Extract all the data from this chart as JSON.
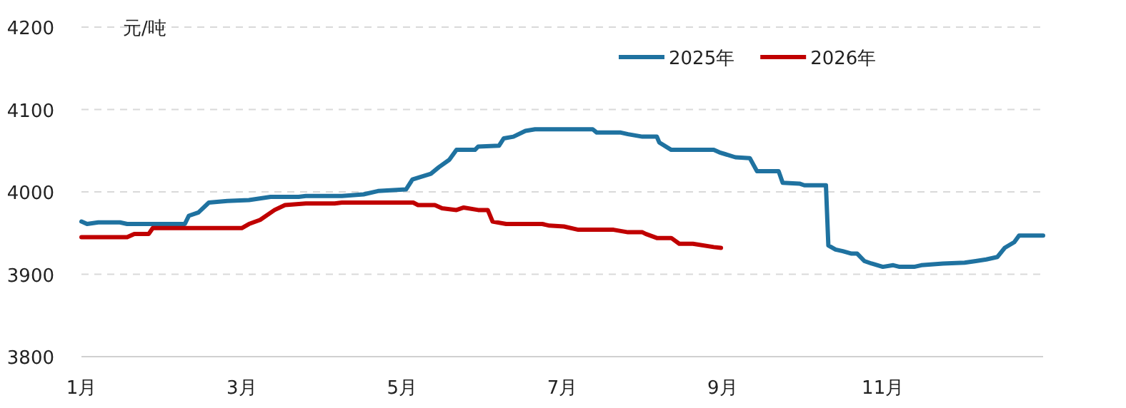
{
  "chart_data": {
    "type": "line",
    "ylabel": "元/吨",
    "legend": "top",
    "grid": "y",
    "line_style": "solid",
    "marker": "none",
    "xlim": [
      1,
      13
    ],
    "ylim": [
      3800,
      4200
    ],
    "yticks": [
      3800,
      3900,
      4000,
      4100,
      4200
    ],
    "xticks": [
      {
        "value": 1,
        "label": "1月"
      },
      {
        "value": 3,
        "label": "3月"
      },
      {
        "value": 5,
        "label": "5月"
      },
      {
        "value": 7,
        "label": "7月"
      },
      {
        "value": 9,
        "label": "9月"
      },
      {
        "value": 11,
        "label": "11月"
      }
    ],
    "series": [
      {
        "name": "2025年",
        "color": "#1f72a0",
        "x": [
          1.0,
          1.07,
          1.21,
          1.48,
          1.57,
          2.29,
          2.34,
          2.46,
          2.59,
          2.82,
          3.09,
          3.36,
          3.71,
          3.8,
          4.25,
          4.52,
          4.7,
          5.05,
          5.13,
          5.23,
          5.36,
          5.46,
          5.59,
          5.68,
          5.91,
          5.95,
          6.21,
          6.27,
          6.39,
          6.54,
          6.66,
          7.38,
          7.43,
          7.73,
          7.82,
          8.0,
          8.18,
          8.21,
          8.36,
          8.89,
          8.96,
          9.16,
          9.34,
          9.43,
          9.7,
          9.75,
          9.96,
          10.02,
          10.29,
          10.32,
          10.41,
          10.5,
          10.61,
          10.68,
          10.77,
          10.86,
          11.0,
          11.13,
          11.21,
          11.39,
          11.48,
          11.75,
          12.02,
          12.16,
          12.29,
          12.43,
          12.52,
          12.64,
          12.7,
          13.0
        ],
        "values": [
          3964,
          3961,
          3963,
          3963,
          3961,
          3961,
          3971,
          3975,
          3987,
          3989,
          3990,
          3994,
          3994,
          3995,
          3995,
          3997,
          4001,
          4003,
          4015,
          4018,
          4022,
          4030,
          4039,
          4051,
          4051,
          4055,
          4056,
          4065,
          4067,
          4074,
          4076,
          4076,
          4072,
          4072,
          4070,
          4067,
          4067,
          4060,
          4051,
          4051,
          4048,
          4042,
          4041,
          4025,
          4025,
          4011,
          4010,
          4008,
          4008,
          3935,
          3930,
          3928,
          3925,
          3925,
          3916,
          3913,
          3909,
          3911,
          3909,
          3909,
          3911,
          3913,
          3914,
          3916,
          3918,
          3921,
          3932,
          3939,
          3947,
          3947
        ]
      },
      {
        "name": "2026年",
        "color": "#c00000",
        "x": [
          1.0,
          1.57,
          1.66,
          1.84,
          1.89,
          3.0,
          3.09,
          3.23,
          3.41,
          3.54,
          3.8,
          4.16,
          4.25,
          5.14,
          5.2,
          5.41,
          5.5,
          5.68,
          5.77,
          5.95,
          6.07,
          6.13,
          6.3,
          6.75,
          6.84,
          7.02,
          7.2,
          7.64,
          7.82,
          8.0,
          8.04,
          8.18,
          8.36,
          8.46,
          8.63,
          8.89,
          8.98
        ],
        "values": [
          3945,
          3945,
          3949,
          3949,
          3956,
          3956,
          3961,
          3966,
          3978,
          3984,
          3986,
          3986,
          3987,
          3987,
          3984,
          3984,
          3980,
          3978,
          3981,
          3978,
          3978,
          3964,
          3961,
          3961,
          3959,
          3958,
          3954,
          3954,
          3951,
          3951,
          3949,
          3944,
          3944,
          3937,
          3937,
          3933,
          3932
        ]
      }
    ]
  }
}
